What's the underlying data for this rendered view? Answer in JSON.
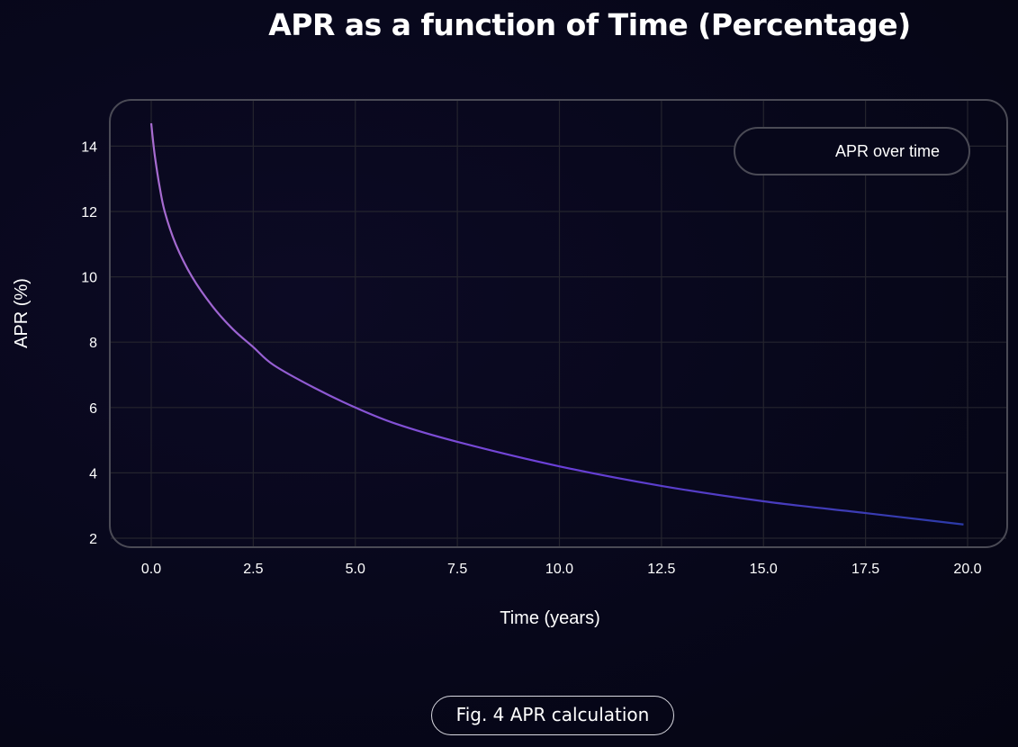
{
  "chart_data": {
    "type": "line",
    "title": "APR  as a function of Time (Percentage)",
    "xlabel": "Time (years)",
    "ylabel": "APR (%)",
    "xlim": [
      -0.9,
      20.6
    ],
    "ylim": [
      1.7,
      15.2
    ],
    "xticks": [
      0,
      2.5,
      5,
      7.5,
      10,
      12.5,
      15,
      17.5,
      20
    ],
    "xtick_labels": [
      "0.0",
      "2.5",
      "5.0",
      "7.5",
      "10.0",
      "12.5",
      "15.0",
      "17.5",
      "20.0"
    ],
    "yticks": [
      2,
      4,
      6,
      8,
      10,
      12,
      14
    ],
    "ytick_labels": [
      "2",
      "4",
      "6",
      "8",
      "10",
      "12",
      "14"
    ],
    "grid": true,
    "legend": {
      "placement": "top-right",
      "entries": [
        "APR over time"
      ]
    },
    "series": [
      {
        "name": "APR over time",
        "x": [
          0,
          0.05,
          0.1,
          0.2,
          0.33,
          0.6,
          1,
          1.5,
          2,
          2.5,
          3,
          4,
          5,
          6,
          7.5,
          10,
          12.5,
          15,
          17.5,
          19.9
        ],
        "y": [
          14.7,
          14.1,
          13.6,
          12.8,
          12.0,
          11.0,
          10.0,
          9.1,
          8.4,
          7.85,
          7.3,
          6.6,
          6.0,
          5.5,
          4.95,
          4.2,
          3.6,
          3.13,
          2.77,
          2.42
        ]
      }
    ],
    "colors": {
      "line_start": "#a86cd0",
      "line_end": "#2b3aa8",
      "grid": "#24242e",
      "frame": "#4a4a55"
    }
  },
  "caption": "Fig. 4 APR calculation"
}
